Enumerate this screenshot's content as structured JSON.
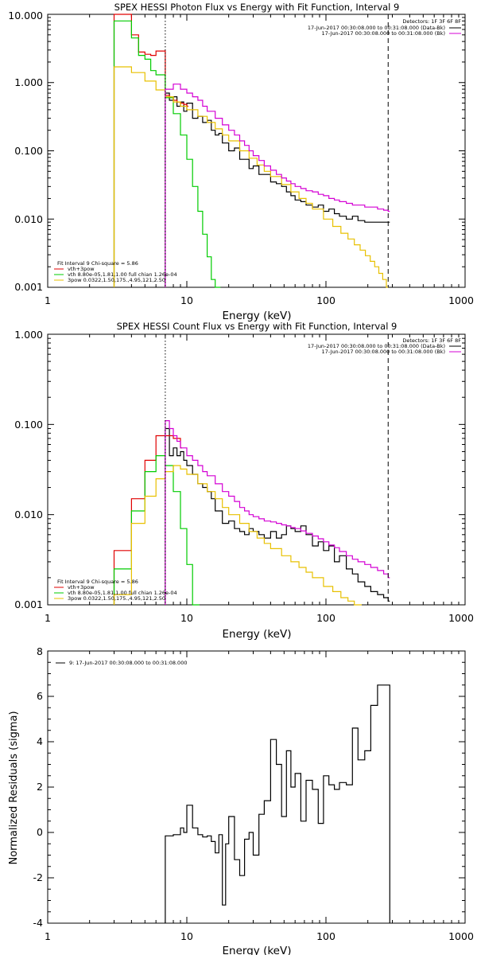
{
  "chart_data": [
    {
      "type": "line",
      "title": "SPEX HESSI Photon Flux vs Energy with Fit Function, Interval 9",
      "xlabel": "Energy (keV)",
      "ylabel": "",
      "xscale": "log",
      "yscale": "log",
      "xlim": [
        1,
        1000
      ],
      "ylim": [
        0.001,
        10
      ],
      "x_ticks": [
        "1",
        "10",
        "100",
        "1000"
      ],
      "y_ticks": [
        "0.001",
        "0.010",
        "0.100",
        "1.000",
        "10.000"
      ],
      "vlines": [
        {
          "x": 7,
          "style": "dotted",
          "color": "#000000"
        },
        {
          "x": 280,
          "style": "dashed",
          "color": "#000000"
        }
      ],
      "info_lines": [
        "Detectors: 1F 3F 6F 8F",
        "17-Jun-2017 00:30:08.000 to 00:31:08.000 (Data-Bk)",
        "17-Jun-2017 00:30:08.000 to 00:31:08.000 (Bk)"
      ],
      "info_colors": [
        "#000000",
        "#000000",
        "#d400d4"
      ],
      "legend_lines": [
        "Fit Interval 9   Chi-square = 5.86",
        "vth+3pow",
        "vth 8.80e-05,1.81,1.00  full chian 1.26e-04",
        "3pow 0.0322,1.50,175.,4.95,121,2.50"
      ],
      "legend_colors": [
        "#000000",
        "#e00000",
        "#00cc00",
        "#e8c000"
      ],
      "series": [
        {
          "color": "#000000",
          "start_x": 7,
          "x": [
            7,
            7.5,
            8,
            8.5,
            9,
            9.5,
            10,
            11,
            12,
            13,
            14,
            15,
            16,
            17,
            18,
            19,
            20,
            22,
            24,
            26,
            28,
            30,
            33,
            36,
            40,
            44,
            48,
            52,
            56,
            60,
            66,
            72,
            80,
            88,
            96,
            105,
            115,
            125,
            140,
            155,
            170,
            190,
            210,
            235,
            260,
            280
          ],
          "y": [
            0.7,
            0.55,
            0.62,
            0.45,
            0.52,
            0.38,
            0.5,
            0.3,
            0.32,
            0.26,
            0.28,
            0.2,
            0.17,
            0.18,
            0.13,
            0.13,
            0.1,
            0.11,
            0.075,
            0.075,
            0.055,
            0.06,
            0.045,
            0.045,
            0.035,
            0.033,
            0.03,
            0.025,
            0.022,
            0.019,
            0.018,
            0.016,
            0.015,
            0.016,
            0.013,
            0.014,
            0.012,
            0.011,
            0.01,
            0.011,
            0.0095,
            0.009,
            0.009,
            0.009,
            0.009,
            0.009
          ]
        },
        {
          "color": "#e00000",
          "start_x": 3,
          "x": [
            3,
            4,
            4.5,
            5,
            5.5,
            6,
            7,
            7.5,
            8,
            8.5,
            9,
            9.5,
            10
          ],
          "y": [
            10,
            5.0,
            2.8,
            2.6,
            2.5,
            2.9,
            0.65,
            0.6,
            0.55,
            0.52,
            0.5,
            0.48,
            0.45
          ]
        },
        {
          "color": "#00cc00",
          "start_x": 3,
          "x": [
            3,
            4,
            4.5,
            5,
            5.5,
            6,
            7,
            8,
            9,
            10,
            11,
            12,
            13,
            14,
            15,
            16,
            17
          ],
          "y": [
            8.0,
            4.5,
            2.5,
            2.2,
            1.5,
            1.3,
            0.6,
            0.35,
            0.17,
            0.075,
            0.03,
            0.013,
            0.006,
            0.0028,
            0.0013,
            0.001,
            0.001
          ]
        },
        {
          "color": "#e8c000",
          "start_x": 3,
          "x": [
            3,
            4,
            5,
            6,
            7,
            8,
            9,
            10,
            12,
            14,
            16,
            18,
            20,
            24,
            28,
            32,
            36,
            40,
            48,
            56,
            64,
            72,
            80,
            96,
            112,
            128,
            144,
            160,
            176,
            192,
            208,
            224,
            240,
            256,
            272
          ],
          "y": [
            1.7,
            1.4,
            1.05,
            0.78,
            0.62,
            0.52,
            0.45,
            0.4,
            0.32,
            0.26,
            0.21,
            0.17,
            0.14,
            0.1,
            0.078,
            0.062,
            0.05,
            0.042,
            0.032,
            0.025,
            0.02,
            0.017,
            0.014,
            0.01,
            0.0078,
            0.0062,
            0.0051,
            0.0042,
            0.0035,
            0.0029,
            0.0024,
            0.002,
            0.0016,
            0.0013,
            0.001
          ]
        },
        {
          "color": "#d400d4",
          "start_x": 7,
          "x": [
            7,
            8,
            9,
            10,
            11,
            12,
            13,
            14,
            16,
            18,
            20,
            22,
            24,
            26,
            28,
            30,
            33,
            36,
            40,
            44,
            48,
            52,
            56,
            60,
            66,
            72,
            80,
            88,
            96,
            105,
            115,
            125,
            140,
            155,
            170,
            190,
            210,
            235,
            260,
            280
          ],
          "y": [
            0.8,
            0.95,
            0.8,
            0.7,
            0.62,
            0.55,
            0.45,
            0.38,
            0.3,
            0.24,
            0.2,
            0.17,
            0.14,
            0.12,
            0.1,
            0.085,
            0.072,
            0.06,
            0.052,
            0.045,
            0.04,
            0.036,
            0.033,
            0.03,
            0.028,
            0.026,
            0.025,
            0.023,
            0.022,
            0.02,
            0.019,
            0.018,
            0.017,
            0.016,
            0.016,
            0.015,
            0.015,
            0.014,
            0.0135,
            0.013
          ]
        }
      ]
    },
    {
      "type": "line",
      "title": "SPEX HESSI Count Flux vs Energy with Fit Function, Interval 9",
      "xlabel": "Energy (keV)",
      "ylabel": "",
      "xscale": "log",
      "yscale": "log",
      "xlim": [
        1,
        1000
      ],
      "ylim": [
        0.001,
        1
      ],
      "x_ticks": [
        "1",
        "10",
        "100",
        "1000"
      ],
      "y_ticks": [
        "0.001",
        "0.010",
        "0.100",
        "1.000"
      ],
      "vlines": [
        {
          "x": 7,
          "style": "dotted",
          "color": "#000000"
        },
        {
          "x": 280,
          "style": "dashed",
          "color": "#000000"
        }
      ],
      "info_lines": [
        "Detectors: 1F 3F 6F 8F",
        "17-Jun-2017 00:30:08.000 to 00:31:08.000 (Data-Bk)",
        "17-Jun-2017 00:30:08.000 to 00:31:08.000 (Bk)"
      ],
      "info_colors": [
        "#000000",
        "#000000",
        "#d400d4"
      ],
      "legend_lines": [
        "Fit Interval 9   Chi-square = 5.86",
        "vth+3pow",
        "vth 8.80e-05,1.81,1.00  full chian 1.26e-04",
        "3pow 0.0322,1.50,175.,4.95,121,2.50"
      ],
      "legend_colors": [
        "#000000",
        "#e00000",
        "#00cc00",
        "#e8c000"
      ],
      "series": [
        {
          "color": "#000000",
          "start_x": 7,
          "x": [
            7,
            7.5,
            8,
            8.5,
            9,
            9.5,
            10,
            11,
            12,
            13,
            14,
            15,
            16,
            18,
            20,
            22,
            24,
            26,
            28,
            30,
            33,
            36,
            40,
            44,
            48,
            52,
            56,
            60,
            66,
            72,
            80,
            88,
            96,
            105,
            115,
            125,
            140,
            155,
            170,
            190,
            210,
            235,
            260,
            280
          ],
          "y": [
            0.09,
            0.045,
            0.055,
            0.045,
            0.05,
            0.04,
            0.035,
            0.028,
            0.022,
            0.02,
            0.018,
            0.015,
            0.011,
            0.008,
            0.0085,
            0.007,
            0.0065,
            0.006,
            0.007,
            0.0065,
            0.006,
            0.0055,
            0.0065,
            0.0055,
            0.006,
            0.0075,
            0.007,
            0.0065,
            0.0075,
            0.006,
            0.0045,
            0.005,
            0.004,
            0.0045,
            0.003,
            0.0035,
            0.0025,
            0.0022,
            0.0018,
            0.0016,
            0.0014,
            0.0013,
            0.0012,
            0.0011
          ]
        },
        {
          "color": "#e00000",
          "start_x": 3,
          "x": [
            3,
            4,
            5,
            6,
            7,
            8,
            9
          ],
          "y": [
            0.004,
            0.015,
            0.04,
            0.075,
            0.075,
            0.07,
            0.055
          ]
        },
        {
          "color": "#00cc00",
          "start_x": 3,
          "x": [
            3,
            4,
            5,
            6,
            7,
            8,
            9,
            10,
            11,
            12
          ],
          "y": [
            0.0025,
            0.011,
            0.03,
            0.045,
            0.035,
            0.018,
            0.007,
            0.0028,
            0.001,
            0.001
          ]
        },
        {
          "color": "#e8c000",
          "start_x": 3,
          "x": [
            3,
            4,
            5,
            6,
            7,
            8,
            9,
            10,
            12,
            14,
            16,
            18,
            20,
            24,
            28,
            32,
            36,
            40,
            48,
            56,
            64,
            72,
            80,
            96,
            112,
            128,
            144,
            160,
            176
          ],
          "y": [
            0.0013,
            0.008,
            0.016,
            0.025,
            0.03,
            0.035,
            0.032,
            0.028,
            0.022,
            0.018,
            0.015,
            0.012,
            0.01,
            0.008,
            0.0065,
            0.0055,
            0.0048,
            0.0042,
            0.0035,
            0.003,
            0.0026,
            0.0023,
            0.002,
            0.0016,
            0.0014,
            0.0012,
            0.0011,
            0.001,
            0.001
          ]
        },
        {
          "color": "#d400d4",
          "start_x": 7,
          "x": [
            7,
            7.5,
            8,
            8.5,
            9,
            10,
            11,
            12,
            13,
            14,
            16,
            18,
            20,
            22,
            24,
            26,
            28,
            30,
            33,
            36,
            40,
            44,
            48,
            52,
            56,
            60,
            66,
            72,
            80,
            88,
            96,
            105,
            115,
            125,
            140,
            155,
            170,
            190,
            210,
            235,
            260,
            280
          ],
          "y": [
            0.11,
            0.09,
            0.075,
            0.065,
            0.055,
            0.045,
            0.04,
            0.035,
            0.03,
            0.027,
            0.022,
            0.018,
            0.016,
            0.014,
            0.012,
            0.011,
            0.01,
            0.0095,
            0.009,
            0.0085,
            0.0083,
            0.008,
            0.0077,
            0.0075,
            0.0072,
            0.007,
            0.0066,
            0.0062,
            0.0058,
            0.0054,
            0.005,
            0.0046,
            0.0043,
            0.0039,
            0.0035,
            0.0032,
            0.003,
            0.0028,
            0.0026,
            0.0024,
            0.0022,
            0.002
          ]
        }
      ]
    },
    {
      "type": "line",
      "title": "",
      "xlabel": "Energy (keV)",
      "ylabel": "Normalized Residuals (sigma)",
      "xscale": "log",
      "yscale": "linear",
      "xlim": [
        1,
        1000
      ],
      "ylim": [
        -4,
        8
      ],
      "x_ticks": [
        "1",
        "10",
        "100",
        "1000"
      ],
      "y_ticks": [
        "-4",
        "-2",
        "0",
        "2",
        "4",
        "6",
        "8"
      ],
      "vlines": [],
      "info_lines": [],
      "info_colors": [],
      "legend_lines": [
        "9: 17-Jun-2017 00:30:08.000 to 00:31:08.000"
      ],
      "legend_colors": [
        "#000000"
      ],
      "series": [
        {
          "color": "#000000",
          "start_x": 7,
          "end_drop": true,
          "x": [
            7,
            8,
            9,
            9.5,
            10,
            11,
            12,
            13,
            14,
            15,
            16,
            17,
            18,
            19,
            20,
            22,
            24,
            26,
            28,
            30,
            33,
            36,
            40,
            44,
            48,
            52,
            56,
            60,
            66,
            72,
            80,
            88,
            96,
            105,
            115,
            125,
            140,
            155,
            170,
            190,
            210,
            235,
            260,
            280
          ],
          "y": [
            -0.15,
            -0.1,
            0.2,
            0.0,
            1.2,
            0.2,
            -0.1,
            -0.2,
            -0.15,
            -0.4,
            -0.9,
            -0.1,
            -3.2,
            -0.5,
            0.7,
            -1.2,
            -1.9,
            -0.3,
            0.0,
            -1.0,
            0.8,
            1.4,
            4.1,
            3.0,
            0.7,
            3.6,
            2.0,
            2.6,
            0.5,
            2.3,
            1.9,
            0.4,
            2.5,
            2.1,
            1.9,
            2.2,
            2.1,
            4.6,
            3.2,
            3.6,
            5.6,
            6.5,
            6.5,
            6.5
          ]
        }
      ]
    }
  ]
}
